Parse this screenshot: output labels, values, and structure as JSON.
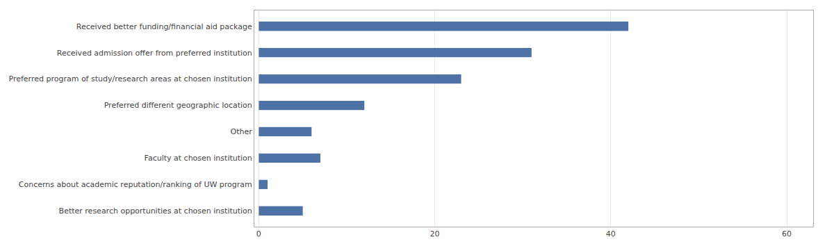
{
  "chart_data": {
    "type": "bar",
    "orientation": "horizontal",
    "categories": [
      "Better research opportunities at chosen institution",
      "Concerns about academic reputation/ranking of UW program",
      "Faculty at chosen institution",
      "Other",
      "Preferred different geographic location",
      "Preferred program of study/research areas at chosen institution",
      "Received admission offer from preferred institution",
      "Received better funding/financial aid package"
    ],
    "values": [
      5,
      1,
      7,
      6,
      12,
      23,
      31,
      42
    ],
    "color": "#4f72a6",
    "xlim": [
      -0.5,
      63
    ],
    "xticks": [
      0,
      20,
      40,
      60
    ],
    "grid": true
  }
}
